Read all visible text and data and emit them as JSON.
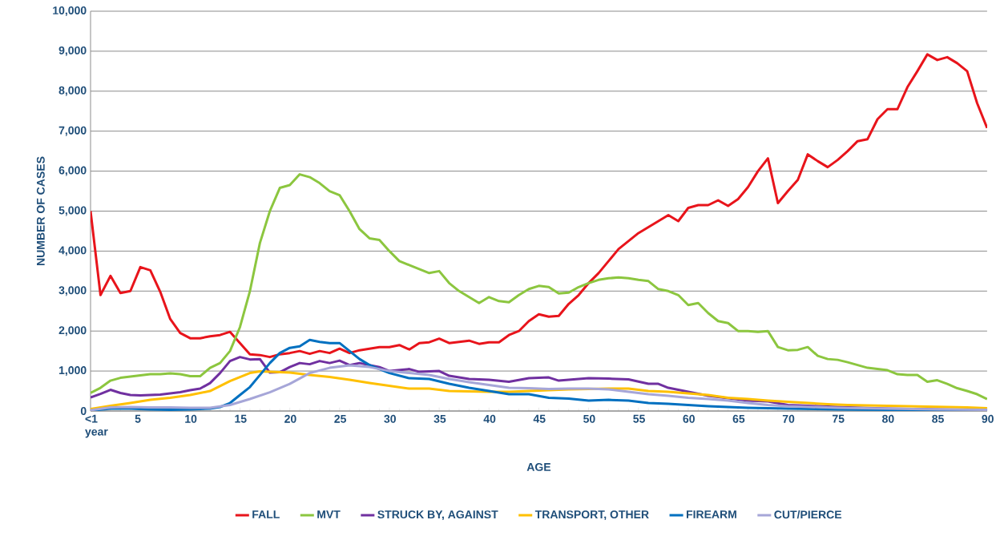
{
  "chart_data": {
    "type": "line",
    "xlabel": "AGE",
    "ylabel": "NUMBER OF CASES",
    "x": [
      0,
      1,
      2,
      3,
      4,
      5,
      6,
      7,
      8,
      9,
      10,
      11,
      12,
      13,
      14,
      15,
      16,
      17,
      18,
      19,
      20,
      21,
      22,
      23,
      24,
      25,
      26,
      27,
      28,
      29,
      30,
      31,
      32,
      33,
      34,
      35,
      36,
      37,
      38,
      39,
      40,
      41,
      42,
      43,
      44,
      45,
      46,
      47,
      48,
      49,
      50,
      51,
      52,
      53,
      54,
      55,
      56,
      57,
      58,
      59,
      60,
      61,
      62,
      63,
      64,
      65,
      66,
      67,
      68,
      69,
      70,
      71,
      72,
      73,
      74,
      75,
      76,
      77,
      78,
      79,
      80,
      81,
      82,
      83,
      84,
      85,
      86,
      87,
      88,
      89,
      90
    ],
    "xlim": [
      0,
      90
    ],
    "xticks": [
      {
        "value": 0,
        "label": "<1 year"
      },
      5,
      10,
      15,
      20,
      25,
      30,
      35,
      40,
      45,
      50,
      55,
      60,
      65,
      70,
      75,
      80,
      85,
      90
    ],
    "ylim": [
      0,
      10000
    ],
    "yticks": [
      0,
      {
        "value": 1000,
        "label": "1,000"
      },
      {
        "value": 2000,
        "label": "2,000"
      },
      {
        "value": 3000,
        "label": "3,000"
      },
      {
        "value": 4000,
        "label": "4,000"
      },
      {
        "value": 5000,
        "label": "5,000"
      },
      {
        "value": 6000,
        "label": "6,000"
      },
      {
        "value": 7000,
        "label": "7,000"
      },
      {
        "value": 8000,
        "label": "8,000"
      },
      {
        "value": 9000,
        "label": "9,000"
      },
      {
        "value": 10000,
        "label": "10,000"
      }
    ],
    "grid": "y",
    "legend": "bottom",
    "series": [
      {
        "name": "FALL",
        "color": "#e8141b",
        "values": [
          5000,
          2900,
          3380,
          2950,
          3000,
          3600,
          3520,
          2980,
          2300,
          1950,
          1820,
          1820,
          1870,
          1900,
          1980,
          1700,
          1420,
          1400,
          1350,
          1420,
          1450,
          1500,
          1430,
          1500,
          1450,
          1560,
          1450,
          1520,
          1560,
          1600,
          1600,
          1650,
          1540,
          1700,
          1720,
          1810,
          1700,
          1730,
          1760,
          1680,
          1720,
          1720,
          1900,
          2000,
          2250,
          2420,
          2360,
          2380,
          2680,
          2900,
          3200,
          3450,
          3750,
          4050,
          4250,
          4450,
          4600,
          4750,
          4900,
          4750,
          5080,
          5150,
          5150,
          5270,
          5130,
          5300,
          5600,
          6000,
          6320,
          5200,
          5500,
          5780,
          6420,
          6250,
          6100,
          6280,
          6500,
          6750,
          6800,
          7300,
          7550,
          7550,
          8100,
          8500,
          8920,
          8780,
          8850,
          8700,
          8500,
          7700,
          7080
        ]
      },
      {
        "name": "MVT",
        "color": "#8cc63f",
        "values": [
          450,
          580,
          760,
          830,
          860,
          890,
          920,
          920,
          940,
          920,
          870,
          870,
          1080,
          1200,
          1500,
          2100,
          3000,
          4200,
          5000,
          5580,
          5650,
          5920,
          5850,
          5700,
          5500,
          5400,
          5000,
          4550,
          4320,
          4280,
          4000,
          3750,
          3650,
          3550,
          3450,
          3500,
          3200,
          3000,
          2850,
          2700,
          2850,
          2750,
          2720,
          2900,
          3050,
          3130,
          3100,
          2940,
          2960,
          3100,
          3200,
          3280,
          3320,
          3340,
          3320,
          3280,
          3250,
          3050,
          3000,
          2900,
          2650,
          2700,
          2450,
          2250,
          2200,
          2000,
          2000,
          1980,
          2000,
          1600,
          1520,
          1530,
          1600,
          1380,
          1300,
          1280,
          1220,
          1150,
          1080,
          1050,
          1020,
          920,
          900,
          900,
          730,
          770,
          680,
          570,
          500,
          420,
          300
        ]
      },
      {
        "name": "STRUCK BY, AGAINST",
        "color": "#7030a0",
        "x": [
          0,
          1,
          2,
          3,
          4,
          5,
          6,
          7,
          8,
          9,
          10,
          11,
          12,
          13,
          14,
          15,
          16,
          17,
          18,
          19,
          20,
          21,
          22,
          23,
          24,
          25,
          26,
          27,
          28,
          29,
          30,
          32,
          33,
          35,
          36,
          38,
          40,
          42,
          44,
          46,
          47,
          50,
          52,
          54,
          56,
          57,
          58,
          60,
          62,
          64,
          66,
          68,
          70,
          72,
          75,
          80,
          85,
          90
        ],
        "values": [
          340,
          430,
          530,
          450,
          400,
          390,
          400,
          410,
          440,
          470,
          520,
          560,
          700,
          950,
          1250,
          1350,
          1290,
          1300,
          960,
          970,
          1100,
          1200,
          1170,
          1250,
          1200,
          1260,
          1150,
          1200,
          1150,
          1100,
          1000,
          1050,
          980,
          1000,
          880,
          800,
          780,
          730,
          820,
          840,
          760,
          820,
          810,
          790,
          680,
          680,
          580,
          480,
          380,
          320,
          260,
          240,
          150,
          130,
          100,
          60,
          40,
          20
        ]
      },
      {
        "name": "TRANSPORT, OTHER",
        "color": "#ffc000",
        "x": [
          0,
          2,
          4,
          6,
          8,
          10,
          12,
          14,
          16,
          17,
          20,
          22,
          24,
          26,
          28,
          30,
          32,
          34,
          36,
          38,
          40,
          42,
          44,
          46,
          48,
          50,
          52,
          54,
          56,
          58,
          60,
          62,
          64,
          66,
          68,
          70,
          72,
          74,
          76,
          78,
          80,
          84,
          88,
          90
        ],
        "values": [
          50,
          130,
          200,
          280,
          330,
          400,
          500,
          750,
          950,
          990,
          960,
          900,
          850,
          780,
          700,
          630,
          560,
          560,
          500,
          490,
          480,
          480,
          500,
          520,
          540,
          550,
          560,
          560,
          500,
          480,
          440,
          400,
          330,
          300,
          260,
          230,
          200,
          170,
          150,
          140,
          130,
          110,
          90,
          70
        ]
      },
      {
        "name": "FIREARM",
        "color": "#0070c0",
        "x": [
          0,
          2,
          4,
          6,
          8,
          10,
          12,
          13,
          14,
          15,
          16,
          17,
          18,
          19,
          20,
          21,
          22,
          23,
          24,
          25,
          26,
          27,
          28,
          30,
          32,
          34,
          36,
          38,
          40,
          42,
          44,
          46,
          48,
          50,
          52,
          54,
          56,
          58,
          60,
          62,
          64,
          66,
          70,
          75,
          80,
          85,
          90
        ],
        "values": [
          10,
          60,
          60,
          40,
          30,
          40,
          60,
          100,
          200,
          400,
          600,
          900,
          1200,
          1450,
          1580,
          1620,
          1780,
          1730,
          1700,
          1700,
          1500,
          1300,
          1150,
          950,
          820,
          800,
          680,
          580,
          500,
          420,
          420,
          330,
          310,
          260,
          280,
          260,
          200,
          180,
          150,
          120,
          100,
          80,
          60,
          40,
          30,
          20,
          10
        ]
      },
      {
        "name": "CUT/PIERCE",
        "color": "#a6a6d8",
        "x": [
          0,
          2,
          4,
          6,
          8,
          10,
          12,
          14,
          16,
          18,
          20,
          22,
          24,
          26,
          28,
          30,
          32,
          34,
          36,
          38,
          40,
          42,
          44,
          46,
          48,
          50,
          52,
          54,
          56,
          58,
          60,
          62,
          64,
          66,
          68,
          70,
          75,
          80,
          85,
          90
        ],
        "values": [
          20,
          90,
          100,
          90,
          90,
          80,
          80,
          150,
          300,
          470,
          680,
          950,
          1080,
          1140,
          1100,
          1000,
          950,
          900,
          800,
          720,
          650,
          580,
          570,
          550,
          560,
          560,
          540,
          480,
          420,
          380,
          330,
          300,
          260,
          200,
          150,
          120,
          80,
          60,
          40,
          30
        ]
      }
    ]
  }
}
